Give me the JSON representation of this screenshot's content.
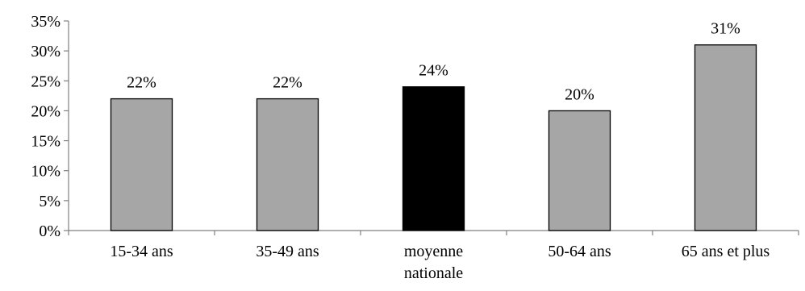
{
  "chart_data": {
    "type": "bar",
    "categories": [
      "15-34 ans",
      "35-49 ans",
      "moyenne nationale",
      "50-64 ans",
      "65 ans et plus"
    ],
    "category_lines": [
      [
        "15-34 ans"
      ],
      [
        "35-49 ans"
      ],
      [
        "moyenne",
        "nationale"
      ],
      [
        "50-64 ans"
      ],
      [
        "65 ans et plus"
      ]
    ],
    "values": [
      22,
      22,
      24,
      20,
      31
    ],
    "data_labels": [
      "22%",
      "22%",
      "24%",
      "20%",
      "31%"
    ],
    "highlight_index": 2,
    "colors": {
      "bar": "#a6a6a6",
      "highlight": "#000000",
      "outline": "#000000",
      "axis": "#7f7f7f"
    },
    "ylim": [
      0,
      35
    ],
    "yticks": [
      0,
      5,
      10,
      15,
      20,
      25,
      30,
      35
    ],
    "ytick_labels": [
      "0%",
      "5%",
      "10%",
      "15%",
      "20%",
      "25%",
      "30%",
      "35%"
    ],
    "title": "",
    "xlabel": "",
    "ylabel": "",
    "grid": false,
    "legend": "none"
  }
}
